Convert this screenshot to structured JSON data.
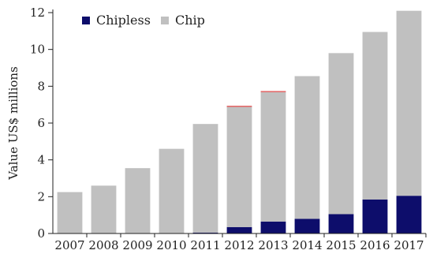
{
  "chart_data": {
    "type": "bar",
    "stacked": true,
    "categories": [
      "2007",
      "2008",
      "2009",
      "2010",
      "2011",
      "2012",
      "2013",
      "2014",
      "2015",
      "2016",
      "2017"
    ],
    "series": [
      {
        "name": "Chipless",
        "color": "#0d0d6b",
        "values": [
          0,
          0,
          0,
          0,
          0.05,
          0.35,
          0.65,
          0.8,
          1.05,
          1.85,
          2.05
        ]
      },
      {
        "name": "Chip",
        "color": "#c0c0c0",
        "values": [
          2.25,
          2.6,
          3.55,
          4.6,
          5.9,
          6.55,
          7.05,
          7.75,
          8.75,
          9.1,
          10.05
        ]
      }
    ],
    "top_accent": {
      "color": "#e46a6a",
      "categories": [
        "2012",
        "2013"
      ]
    },
    "xlabel": "",
    "ylabel": "Value US$ millions",
    "ylim": [
      0,
      12
    ],
    "yticks": [
      0,
      2,
      4,
      6,
      8,
      10,
      12
    ],
    "legend": {
      "position": "top-left",
      "orientation": "horizontal"
    },
    "grid": false
  }
}
